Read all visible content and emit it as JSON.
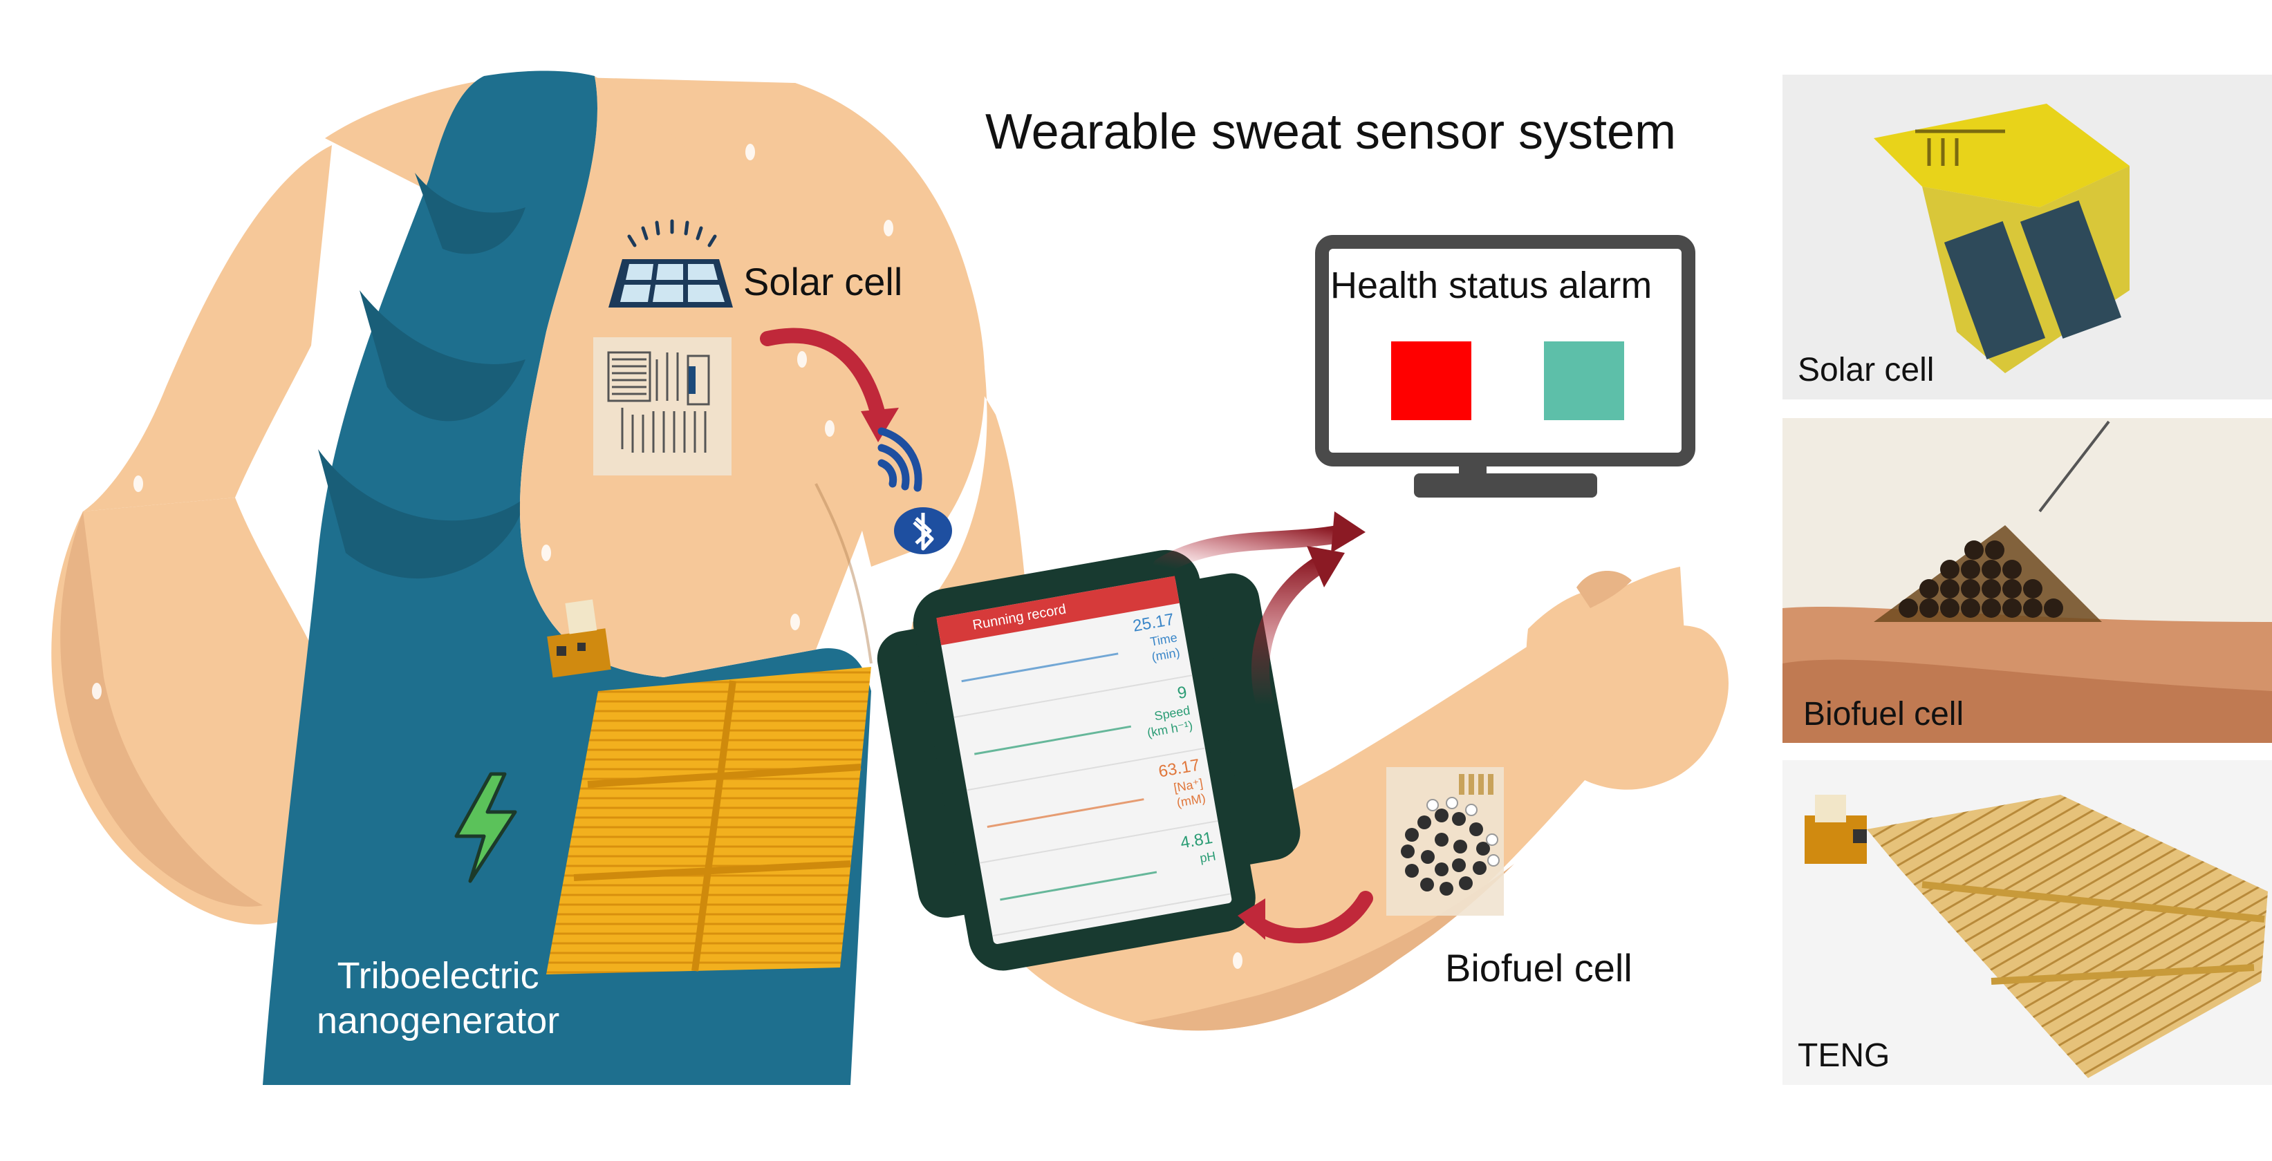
{
  "title": "Wearable sweat sensor system",
  "labels": {
    "solar_cell": "Solar cell",
    "teng_line1": "Triboelectric",
    "teng_line2": "nanogenerator",
    "biofuel_cell": "Biofuel cell",
    "health_status_alarm": "Health status alarm"
  },
  "alarm_colors": {
    "left": "#ff0000",
    "right": "#5dbfa9"
  },
  "phone": {
    "header": "Running record",
    "rows": [
      {
        "value": "25.17",
        "label": "Time",
        "unit": "(min)",
        "color": "#3a86c8"
      },
      {
        "value": "9",
        "label": "Speed",
        "unit": "(km h⁻¹)",
        "color": "#2a9c74"
      },
      {
        "value": "63.17",
        "label": "[Na⁺]",
        "unit": "(mM)",
        "color": "#e0763a"
      },
      {
        "value": "4.81",
        "label": "pH",
        "unit": "",
        "color": "#2a9c74"
      }
    ]
  },
  "photos": [
    {
      "label": "Solar cell"
    },
    {
      "label": "Biofuel cell"
    },
    {
      "label": "TENG"
    }
  ],
  "colors": {
    "skin": "#f6c899",
    "skin_shadow": "#e8b486",
    "shirt": "#1e6f8e",
    "shirt_shadow": "#195e78",
    "arrow": "#c0283a",
    "teng_gold": "#f2b01e",
    "monitor": "#4a4a4a",
    "armband": "#183a30"
  }
}
